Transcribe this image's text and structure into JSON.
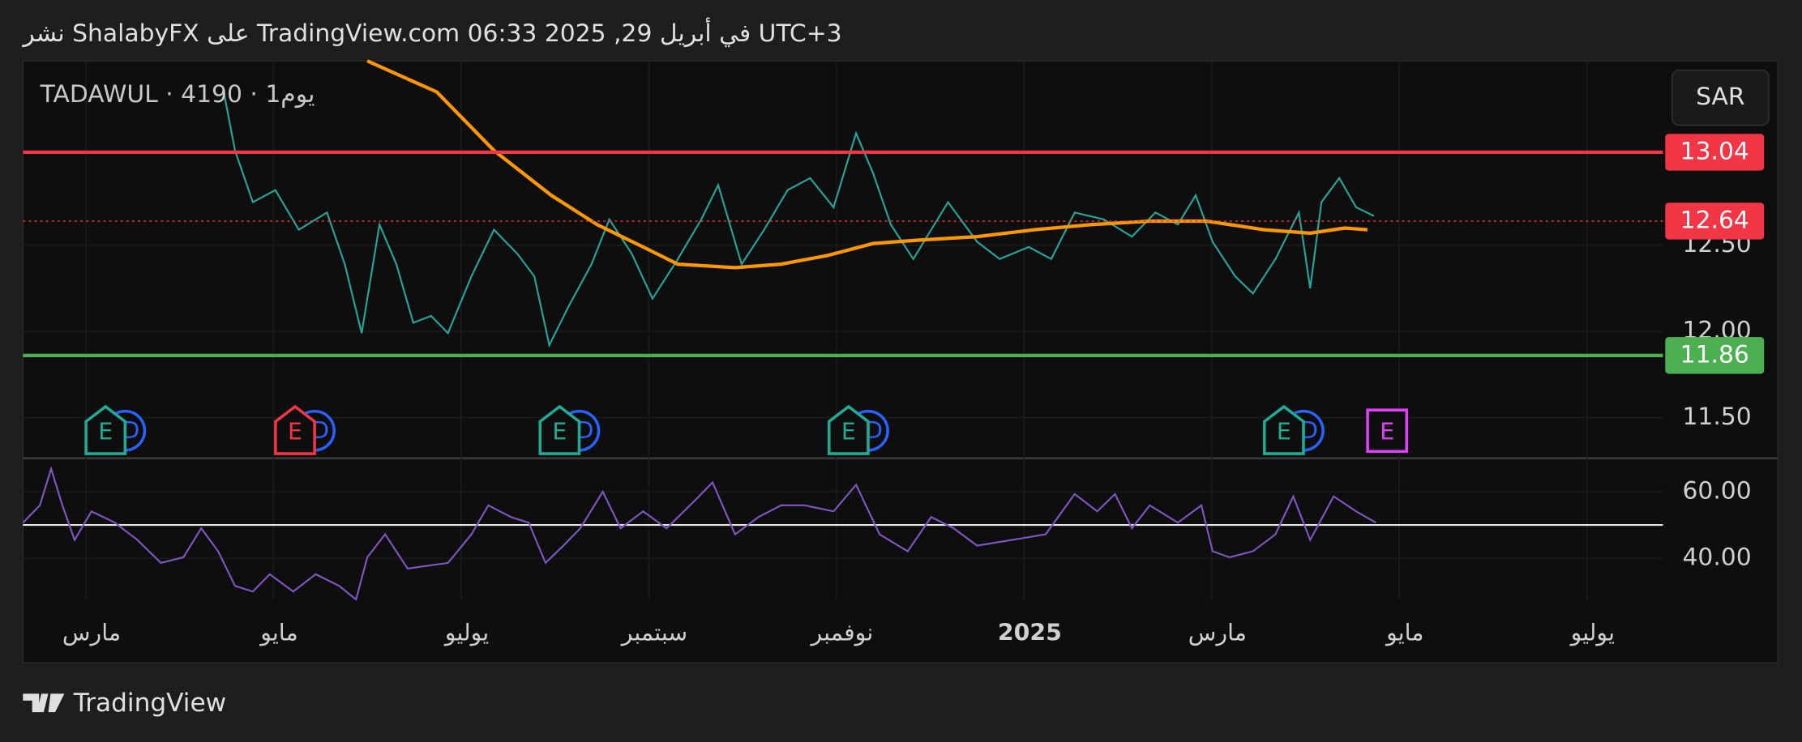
{
  "header": "نشر ShalabyFX على TradingView.com في أبريل 29, 2025 06:33 UTC+3",
  "footer": "TradingView",
  "chart_data": {
    "type": "line",
    "symbol": "TADAWUL · يوم1 · 4190",
    "currency": "SAR",
    "xlim": [
      -0.67,
      16.81
    ],
    "xticks": [
      {
        "value": 0,
        "label": "مارس"
      },
      {
        "value": 2,
        "label": "مايو"
      },
      {
        "value": 4,
        "label": "يوليو"
      },
      {
        "value": 6,
        "label": "سبتمبر"
      },
      {
        "value": 8,
        "label": "نوفمبر"
      },
      {
        "value": 10,
        "label": "2025"
      },
      {
        "value": 12,
        "label": "مارس"
      },
      {
        "value": 14,
        "label": "مايو"
      },
      {
        "value": 16,
        "label": "يوليو"
      }
    ],
    "ylim": [
      11.27,
      13.57
    ],
    "yticks": [
      {
        "value": 11.5,
        "label": "11.50"
      },
      {
        "value": 12,
        "label": "12.00"
      },
      {
        "value": 12.5,
        "label": "12.50"
      }
    ],
    "grid": true,
    "series": [
      {
        "color": "#26a69a",
        "x": [
          1.47,
          1.59,
          1.78,
          2.02,
          2.27,
          2.57,
          2.76,
          2.94,
          3.13,
          3.31,
          3.49,
          3.68,
          3.86,
          4.11,
          4.35,
          4.6,
          4.78,
          4.94,
          5.15,
          5.39,
          5.58,
          5.82,
          6.04,
          6.31,
          6.56,
          6.74,
          6.99,
          7.23,
          7.48,
          7.72,
          7.97,
          8.21,
          8.39,
          8.58,
          8.82,
          9.01,
          9.19,
          9.5,
          9.74,
          10.05,
          10.29,
          10.54,
          10.85,
          11.15,
          11.4,
          11.64,
          11.83,
          12.01,
          12.25,
          12.44,
          12.68,
          12.93,
          13.05,
          13.17,
          13.36,
          13.54,
          13.73
        ],
        "values": [
          13.39,
          13.05,
          12.75,
          12.82,
          12.59,
          12.69,
          12.39,
          11.99,
          12.62,
          12.39,
          12.05,
          12.09,
          11.99,
          12.32,
          12.59,
          12.45,
          12.32,
          11.92,
          12.15,
          12.39,
          12.65,
          12.45,
          12.19,
          12.42,
          12.65,
          12.85,
          12.39,
          12.59,
          12.82,
          12.89,
          12.72,
          13.15,
          12.92,
          12.62,
          12.42,
          12.59,
          12.75,
          12.52,
          12.42,
          12.49,
          12.42,
          12.69,
          12.65,
          12.55,
          12.69,
          12.62,
          12.79,
          12.52,
          12.32,
          12.22,
          12.42,
          12.69,
          12.25,
          12.75,
          12.89,
          12.72,
          12.67
        ]
      },
      {
        "color": "#ff9800",
        "x": [
          3.0,
          3.74,
          4.35,
          4.96,
          5.45,
          5.94,
          6.31,
          6.92,
          7.41,
          7.9,
          8.39,
          8.88,
          9.5,
          10.11,
          10.72,
          11.34,
          11.95,
          12.56,
          13.05,
          13.42,
          13.66
        ],
        "values": [
          13.57,
          13.39,
          13.05,
          12.79,
          12.62,
          12.49,
          12.39,
          12.37,
          12.39,
          12.44,
          12.51,
          12.53,
          12.55,
          12.59,
          12.62,
          12.64,
          12.64,
          12.59,
          12.57,
          12.6,
          12.59
        ]
      }
    ],
    "levels": [
      {
        "value": 13.04,
        "color": "#f23645",
        "style": "solid"
      },
      {
        "value": 12.64,
        "color": "#f23645",
        "style": "dotted"
      },
      {
        "value": 11.86,
        "color": "#4caf50",
        "style": "solid"
      }
    ],
    "events": [
      {
        "x": 0.21,
        "label": "E",
        "color": "#22ab94",
        "badge": "D"
      },
      {
        "x": 2.23,
        "label": "E",
        "color": "#f23645",
        "badge": "D"
      },
      {
        "x": 5.05,
        "label": "E",
        "color": "#22ab94",
        "badge": "D"
      },
      {
        "x": 8.13,
        "label": "E",
        "color": "#22ab94",
        "badge": "D"
      },
      {
        "x": 12.77,
        "label": "E",
        "color": "#22ab94",
        "badge": "D"
      },
      {
        "x": 13.87,
        "label": "E",
        "color": "#e040fb"
      }
    ],
    "rsi": {
      "ylim": [
        27.6,
        69.7
      ],
      "yticks": [
        {
          "value": 40,
          "label": "40.00"
        },
        {
          "value": 60,
          "label": "60.00"
        }
      ],
      "midline": 50,
      "color": "#7e57c2",
      "x": [
        -0.67,
        -0.49,
        -0.37,
        -0.25,
        -0.12,
        0.06,
        0.31,
        0.55,
        0.8,
        1.04,
        1.23,
        1.41,
        1.59,
        1.78,
        1.96,
        2.21,
        2.45,
        2.7,
        2.88,
        3.0,
        3.19,
        3.43,
        3.68,
        3.86,
        4.11,
        4.29,
        4.53,
        4.72,
        4.9,
        5.09,
        5.27,
        5.51,
        5.7,
        5.94,
        6.19,
        6.5,
        6.68,
        6.92,
        7.17,
        7.41,
        7.66,
        7.97,
        8.21,
        8.46,
        8.76,
        9.01,
        9.25,
        9.5,
        9.87,
        10.23,
        10.54,
        10.78,
        10.97,
        11.15,
        11.34,
        11.64,
        11.89,
        12.01,
        12.19,
        12.44,
        12.68,
        12.87,
        13.05,
        13.3,
        13.54,
        13.75
      ],
      "values": [
        50.7,
        55.9,
        66.9,
        55.9,
        45.5,
        54.1,
        50.7,
        45.5,
        38.6,
        40.3,
        49.0,
        42.1,
        31.7,
        30.0,
        35.2,
        30.0,
        35.2,
        31.7,
        27.6,
        40.3,
        47.2,
        36.9,
        37.9,
        38.6,
        47.2,
        55.9,
        52.4,
        50.7,
        38.6,
        43.8,
        49.0,
        60.0,
        49.0,
        54.1,
        49.0,
        57.6,
        62.8,
        47.2,
        52.4,
        55.9,
        55.9,
        54.1,
        62.1,
        47.2,
        42.1,
        52.4,
        49.0,
        43.8,
        45.5,
        47.2,
        59.3,
        54.1,
        59.3,
        49.0,
        55.9,
        50.7,
        55.9,
        42.1,
        40.3,
        42.1,
        47.2,
        58.6,
        45.5,
        58.6,
        54.1,
        50.7
      ]
    }
  }
}
